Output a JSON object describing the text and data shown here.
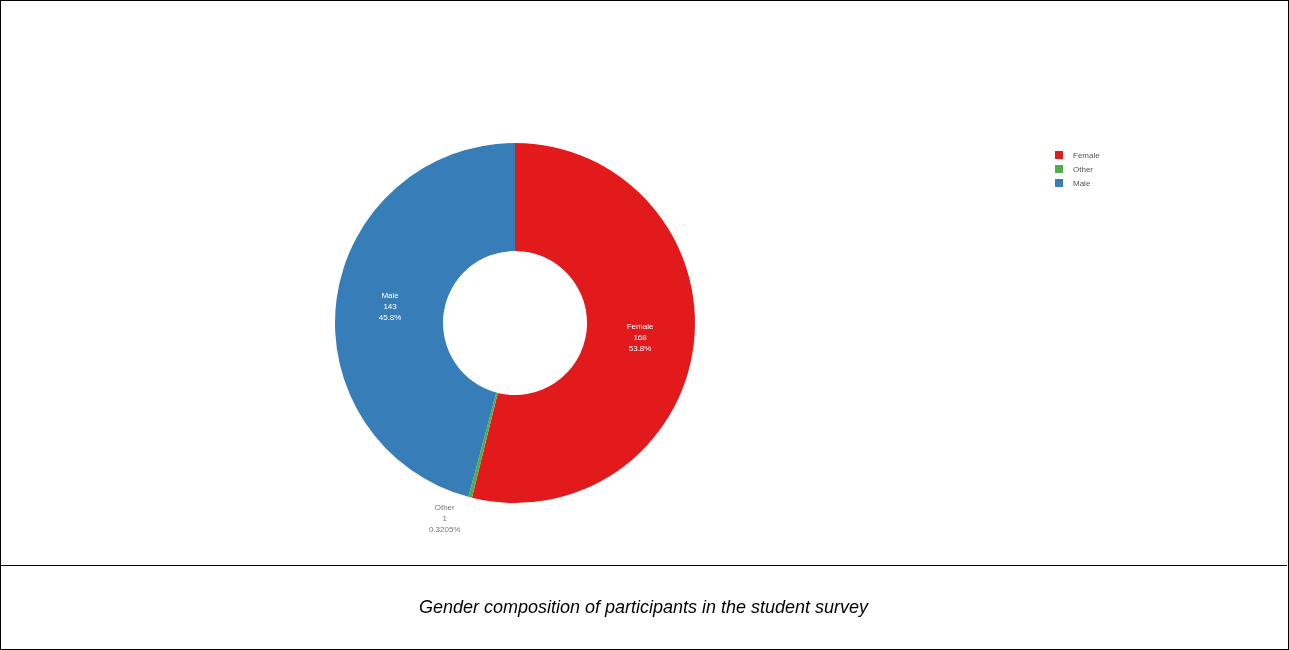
{
  "chart_data": {
    "type": "donut",
    "categories": [
      "Female",
      "Other",
      "Male"
    ],
    "values": [
      168,
      1,
      143
    ],
    "colors": [
      "#e31a1c",
      "#4daf4a",
      "#377eb8"
    ],
    "value_labels": [
      "168\n53.8%",
      "1\n0.3205%",
      "143\n45.8%"
    ],
    "legend": "top right",
    "annotations": [
      "Gender composition of participants in the student survey"
    ]
  }
}
